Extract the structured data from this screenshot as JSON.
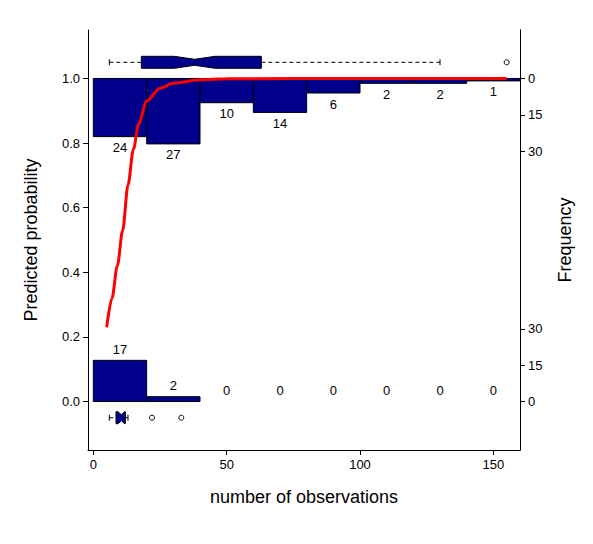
{
  "chart_data": {
    "type": "logistic",
    "xlabel": "number of observations",
    "ylabel": "Predicted probability",
    "y2label": "Frequency",
    "xlim": [
      -2,
      160
    ],
    "xticks": [
      0,
      50,
      100,
      150
    ],
    "ylim": [
      -0.15,
      1.15
    ],
    "yticks": [
      {
        "value": 0,
        "label": "0.0"
      },
      {
        "value": 0.2,
        "label": "0.2"
      },
      {
        "value": 0.4,
        "label": "0.4"
      },
      {
        "value": 0.6,
        "label": "0.6"
      },
      {
        "value": 0.8,
        "label": "0.8"
      },
      {
        "value": 1,
        "label": "1.0"
      }
    ],
    "y2lim": [
      -20,
      153.3
    ],
    "y2ticks": [
      0,
      15,
      30
    ],
    "grid": false,
    "data_labels": true,
    "curve": {
      "color": "#ff0000",
      "line_style": "solid",
      "x": [
        5,
        7,
        9,
        11,
        13,
        15,
        17,
        20,
        25,
        30,
        40,
        50,
        100,
        155
      ],
      "values": [
        0.23,
        0.32,
        0.42,
        0.53,
        0.67,
        0.78,
        0.86,
        0.93,
        0.97,
        0.985,
        0.996,
        0.999,
        1,
        1
      ]
    },
    "histogram": {
      "color": "#00008b",
      "bins": [
        0,
        20,
        40,
        60,
        80,
        100,
        120,
        140,
        160
      ],
      "counts_top": [
        24,
        27,
        10,
        14,
        6,
        2,
        2,
        1
      ],
      "counts_bottom": [
        17,
        2,
        0,
        0,
        0,
        0,
        0,
        0
      ]
    },
    "boxplots": [
      {
        "y": 1.05,
        "min": 6,
        "q1": 18,
        "median": 38,
        "q3": 63,
        "max": 130,
        "outliers": [
          155
        ],
        "color": "#00008b",
        "line_style": "dashed"
      },
      {
        "y": -0.05,
        "min": 6,
        "q1": 8.5,
        "median": 10.5,
        "q3": 12,
        "max": 13,
        "outliers": [
          22,
          33
        ],
        "color": "#00008b",
        "line_style": "dashed"
      }
    ]
  }
}
